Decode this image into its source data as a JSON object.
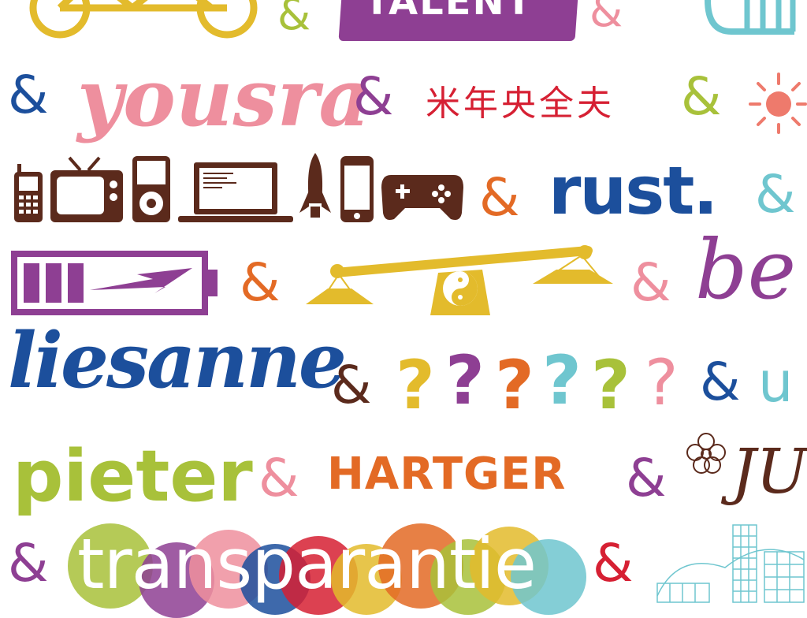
{
  "ampersand": "&",
  "words": {
    "talent": "TALENT",
    "yousra": "yousra",
    "chinese": "米年央全夫",
    "rust": "rust.",
    "be": "be",
    "liesanne": "liesanne",
    "u": "u",
    "pieter": "pieter",
    "hartger": "HARTGER",
    "ju": "JU",
    "transparantie": "transparantie"
  },
  "question_marks": [
    "?",
    "?",
    "?",
    "?",
    "?",
    "?"
  ],
  "colors": {
    "yellow": "#e3bb2c",
    "purple": "#8e3f93",
    "green": "#a8c13a",
    "pink": "#ee8f9e",
    "blue": "#1c4f9c",
    "orange": "#e36a25",
    "teal": "#6fc6cf",
    "brown": "#5b2a1c",
    "red": "#d62033"
  },
  "icons": [
    "bicycle-icon",
    "trumpet-icon",
    "sun-icon",
    "mobile-phone-icon",
    "television-icon",
    "ipod-icon",
    "laptop-icon",
    "rocket-icon",
    "smartphone-icon",
    "gamepad-icon",
    "battery-icon",
    "scale-icon",
    "flower-icon",
    "building-icon"
  ]
}
